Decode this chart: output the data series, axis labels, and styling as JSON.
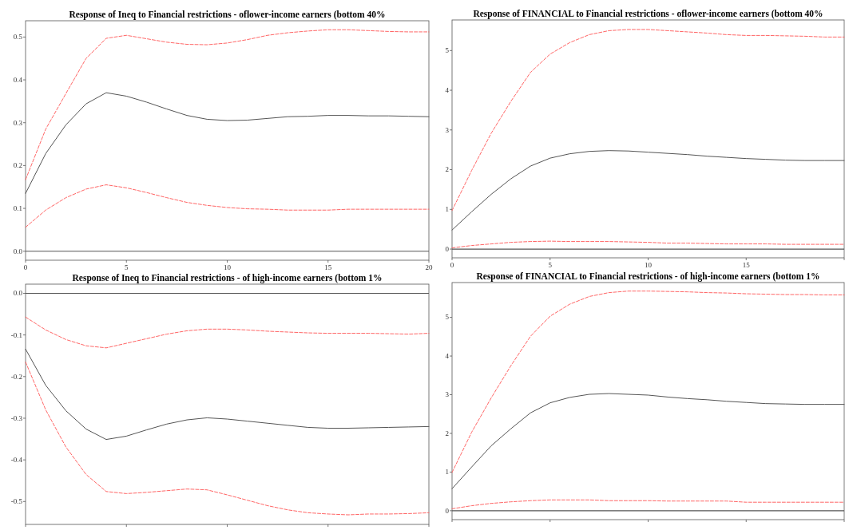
{
  "chart_data": [
    {
      "type": "line",
      "title": "Response of Ineq to Financial restrictions - oflower-income earners (bottom 40%",
      "x": [
        0,
        1,
        2,
        3,
        4,
        5,
        6,
        7,
        8,
        9,
        10,
        11,
        12,
        13,
        14,
        15,
        16,
        17,
        18,
        19,
        20
      ],
      "xlim": [
        0,
        20
      ],
      "xticks": [
        0,
        5,
        10,
        15,
        20
      ],
      "ylim": [
        -0.021,
        0.538
      ],
      "yticks": [
        {
          "value": 0,
          "label": "0.0"
        },
        0.1,
        0.2,
        0.3,
        0.4,
        0.5
      ],
      "ref_lines": [
        {
          "axis": "y",
          "value": 0,
          "color": "#555555",
          "line_style": "solid"
        }
      ],
      "series": [
        {
          "color": "#555555",
          "line_style": "solid",
          "values": [
            0.135,
            0.228,
            0.295,
            0.344,
            0.37,
            0.362,
            0.348,
            0.332,
            0.317,
            0.308,
            0.305,
            0.306,
            0.31,
            0.314,
            0.315,
            0.317,
            0.317,
            0.316,
            0.316,
            0.315,
            0.314
          ]
        },
        {
          "color": "#ff6666",
          "line_style": "dashed",
          "values": [
            0.167,
            0.285,
            0.368,
            0.45,
            0.497,
            0.504,
            0.496,
            0.488,
            0.483,
            0.482,
            0.486,
            0.494,
            0.504,
            0.51,
            0.514,
            0.517,
            0.517,
            0.515,
            0.513,
            0.512,
            0.512
          ]
        },
        {
          "color": "#ff6666",
          "line_style": "dashed",
          "values": [
            0.056,
            0.096,
            0.125,
            0.145,
            0.155,
            0.148,
            0.137,
            0.125,
            0.114,
            0.107,
            0.102,
            0.099,
            0.098,
            0.096,
            0.096,
            0.096,
            0.098,
            0.098,
            0.098,
            0.098,
            0.098
          ]
        }
      ]
    },
    {
      "type": "line",
      "title": "Response of FINANCIAL to Financial restrictions - oflower-income earners (bottom 40%",
      "x": [
        0,
        1,
        2,
        3,
        4,
        5,
        6,
        7,
        8,
        9,
        10,
        11,
        12,
        13,
        14,
        15,
        16,
        17,
        18,
        19,
        20
      ],
      "xlim": [
        0,
        20
      ],
      "xticks": [
        0,
        5,
        10,
        15,
        {
          "value": 20,
          "label": null
        }
      ],
      "ylim": [
        -0.22,
        5.77
      ],
      "yticks": [
        0,
        1,
        2,
        3,
        4,
        5
      ],
      "ref_lines": [
        {
          "axis": "y",
          "value": 0,
          "color": "#555555",
          "line_style": "solid"
        }
      ],
      "series": [
        {
          "color": "#555555",
          "line_style": "solid",
          "values": [
            0.48,
            0.94,
            1.38,
            1.77,
            2.09,
            2.29,
            2.4,
            2.46,
            2.48,
            2.47,
            2.44,
            2.41,
            2.38,
            2.34,
            2.31,
            2.28,
            2.26,
            2.24,
            2.23,
            2.23,
            2.23
          ]
        },
        {
          "color": "#ff6666",
          "line_style": "dashed",
          "values": [
            0.97,
            1.98,
            2.92,
            3.72,
            4.45,
            4.91,
            5.2,
            5.4,
            5.5,
            5.53,
            5.53,
            5.5,
            5.47,
            5.44,
            5.4,
            5.38,
            5.38,
            5.37,
            5.36,
            5.34,
            5.34
          ]
        },
        {
          "color": "#ff6666",
          "line_style": "dashed",
          "values": [
            0.03,
            0.09,
            0.13,
            0.17,
            0.19,
            0.2,
            0.19,
            0.19,
            0.19,
            0.18,
            0.17,
            0.15,
            0.15,
            0.14,
            0.13,
            0.13,
            0.13,
            0.12,
            0.12,
            0.12,
            0.12
          ]
        }
      ]
    },
    {
      "type": "line",
      "title": "Response of Ineq to Financial restrictions - of high-income earners (bottom 1%",
      "x": [
        0,
        1,
        2,
        3,
        4,
        5,
        6,
        7,
        8,
        9,
        10,
        11,
        12,
        13,
        14,
        15,
        16,
        17,
        18,
        19,
        20
      ],
      "xlim": [
        0,
        20
      ],
      "xticks": [
        0,
        5,
        10,
        15,
        20
      ],
      "tick_labels": "y",
      "ylim": [
        -0.555,
        0.022
      ],
      "yticks": [
        {
          "value": 0,
          "label": "0.0"
        },
        -0.1,
        -0.2,
        -0.3,
        -0.4,
        -0.5
      ],
      "ref_lines": [
        {
          "axis": "y",
          "value": 0,
          "color": "#555555",
          "line_style": "solid"
        }
      ],
      "series": [
        {
          "color": "#555555",
          "line_style": "solid",
          "values": [
            -0.134,
            -0.221,
            -0.282,
            -0.326,
            -0.351,
            -0.343,
            -0.328,
            -0.314,
            -0.304,
            -0.299,
            -0.302,
            -0.307,
            -0.312,
            -0.317,
            -0.322,
            -0.324,
            -0.324,
            -0.323,
            -0.322,
            -0.321,
            -0.32
          ]
        },
        {
          "color": "#ff6666",
          "line_style": "dashed",
          "values": [
            -0.057,
            -0.088,
            -0.111,
            -0.126,
            -0.131,
            -0.12,
            -0.109,
            -0.098,
            -0.09,
            -0.086,
            -0.086,
            -0.088,
            -0.091,
            -0.093,
            -0.095,
            -0.096,
            -0.096,
            -0.096,
            -0.097,
            -0.098,
            -0.096
          ]
        },
        {
          "color": "#ff6666",
          "line_style": "dashed",
          "values": [
            -0.165,
            -0.28,
            -0.369,
            -0.435,
            -0.476,
            -0.481,
            -0.478,
            -0.474,
            -0.47,
            -0.472,
            -0.484,
            -0.497,
            -0.51,
            -0.52,
            -0.527,
            -0.53,
            -0.532,
            -0.53,
            -0.53,
            -0.529,
            -0.527
          ]
        }
      ]
    },
    {
      "type": "line",
      "title": "Response of FINANCIAL to Financial restrictions - of high-income earners (bottom 1%",
      "x": [
        0,
        1,
        2,
        3,
        4,
        5,
        6,
        7,
        8,
        9,
        10,
        11,
        12,
        13,
        14,
        15,
        16,
        17,
        18,
        19,
        20
      ],
      "xlim": [
        0,
        20
      ],
      "xticks": [
        0,
        5,
        10,
        15,
        20
      ],
      "tick_labels": "y",
      "ylim": [
        -0.23,
        5.9
      ],
      "yticks": [
        0,
        1,
        2,
        3,
        4,
        5
      ],
      "ref_lines": [
        {
          "axis": "y",
          "value": 0,
          "color": "#555555",
          "line_style": "solid"
        }
      ],
      "series": [
        {
          "color": "#555555",
          "line_style": "solid",
          "values": [
            0.57,
            1.13,
            1.68,
            2.12,
            2.53,
            2.79,
            2.93,
            3.01,
            3.03,
            3.01,
            2.99,
            2.94,
            2.9,
            2.87,
            2.83,
            2.8,
            2.77,
            2.76,
            2.75,
            2.75,
            2.75
          ]
        },
        {
          "color": "#ff6666",
          "line_style": "dashed",
          "values": [
            0.99,
            2.03,
            2.92,
            3.75,
            4.51,
            5.03,
            5.34,
            5.54,
            5.64,
            5.68,
            5.68,
            5.67,
            5.66,
            5.64,
            5.63,
            5.61,
            5.6,
            5.59,
            5.59,
            5.58,
            5.58
          ]
        },
        {
          "color": "#ff6666",
          "line_style": "dashed",
          "values": [
            0.05,
            0.13,
            0.19,
            0.23,
            0.26,
            0.28,
            0.28,
            0.28,
            0.26,
            0.26,
            0.26,
            0.25,
            0.25,
            0.25,
            0.25,
            0.22,
            0.22,
            0.22,
            0.22,
            0.22,
            0.22
          ]
        }
      ]
    }
  ]
}
